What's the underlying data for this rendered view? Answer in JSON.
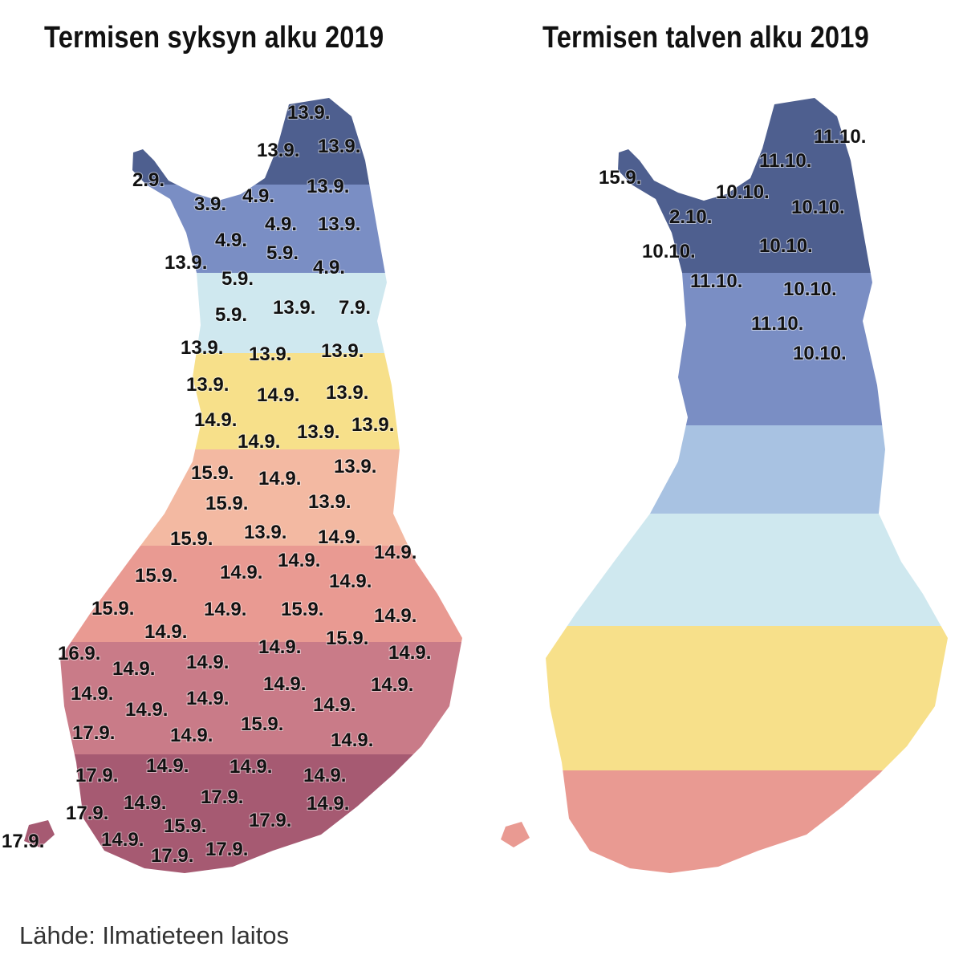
{
  "left_map": {
    "title": "Termisen syksyn alku 2019",
    "labels": [
      "13.9.",
      "13.9.",
      "13.9.",
      "2.9.",
      "13.9.",
      "3.9.",
      "4.9.",
      "4.9.",
      "13.9.",
      "4.9.",
      "5.9.",
      "13.9.",
      "4.9.",
      "5.9.",
      "5.9.",
      "13.9.",
      "7.9.",
      "13.9.",
      "13.9.",
      "13.9.",
      "13.9.",
      "14.9.",
      "13.9.",
      "14.9.",
      "14.9.",
      "13.9.",
      "13.9.",
      "15.9.",
      "14.9.",
      "13.9.",
      "15.9.",
      "13.9.",
      "15.9.",
      "13.9.",
      "14.9.",
      "14.9.",
      "14.9.",
      "15.9.",
      "14.9.",
      "14.9.",
      "15.9.",
      "14.9.",
      "15.9.",
      "14.9.",
      "14.9.",
      "15.9.",
      "16.9.",
      "14.9.",
      "14.9.",
      "14.9.",
      "14.9.",
      "14.9.",
      "14.9.",
      "14.9.",
      "14.9.",
      "14.9.",
      "17.9.",
      "14.9.",
      "15.9.",
      "14.9.",
      "17.9.",
      "14.9.",
      "14.9.",
      "14.9.",
      "14.9.",
      "17.9.",
      "14.9.",
      "17.9.",
      "14.9.",
      "15.9.",
      "17.9.",
      "17.9.",
      "14.9.",
      "17.9.",
      "17.9."
    ]
  },
  "right_map": {
    "title": "Termisen talven alku 2019",
    "labels": [
      "11.10.",
      "11.10.",
      "15.9.",
      "10.10.",
      "10.10.",
      "2.10.",
      "10.10.",
      "10.10.",
      "11.10.",
      "10.10.",
      "11.10.",
      "10.10."
    ]
  },
  "source": "Lähde: Ilmatieteen laitos",
  "colors": {
    "dark_blue": "#4e5f8f",
    "blue": "#7a8ec4",
    "light_blue": "#a8c2e2",
    "pale_cyan": "#cfe8ef",
    "yellow": "#f7e08a",
    "peach": "#f3b9a2",
    "salmon": "#e99a92",
    "rose": "#c97b88",
    "wine": "#a65a72",
    "text": "#111111"
  }
}
